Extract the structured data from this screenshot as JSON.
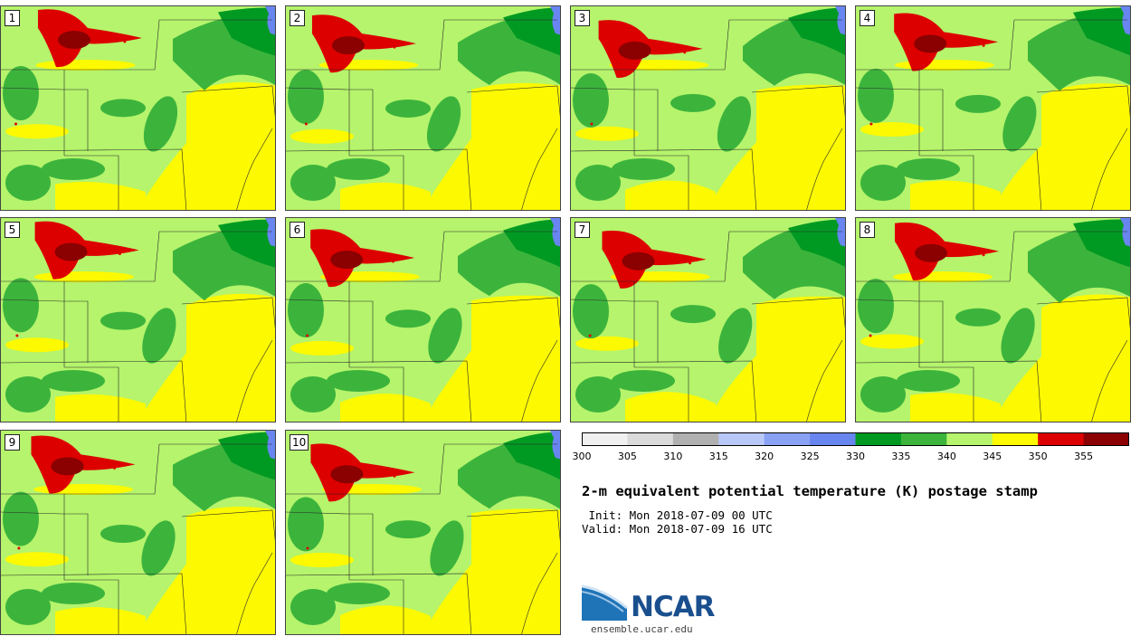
{
  "members": [
    "1",
    "2",
    "3",
    "4",
    "5",
    "6",
    "7",
    "8",
    "9",
    "10"
  ],
  "colorbar": {
    "ticks": [
      "300",
      "305",
      "310",
      "315",
      "320",
      "325",
      "330",
      "335",
      "340",
      "345",
      "350",
      "355"
    ],
    "colors": [
      "#f0f0f0",
      "#dadada",
      "#b0b0b0",
      "#b8c8f8",
      "#8aa2f4",
      "#6985f0",
      "#009a22",
      "#3cb43c",
      "#b5f46c",
      "#fdf900",
      "#dd0000",
      "#8b0000"
    ]
  },
  "title": "2-m equivalent potential temperature (K) postage stamp",
  "init_line": " Init: Mon 2018-07-09 00 UTC",
  "valid_line": "Valid: Mon 2018-07-09 16 UTC",
  "logo": {
    "name": "NCAR",
    "url": "ensemble.ucar.edu"
  },
  "map_colors": {
    "light_green": "#b5f46c",
    "medium_green": "#3cb43c",
    "dark_green": "#009a22",
    "yellow": "#fdf900",
    "red": "#dd0000",
    "dark_red": "#8b0000",
    "lake_blue": "#6985f0"
  }
}
